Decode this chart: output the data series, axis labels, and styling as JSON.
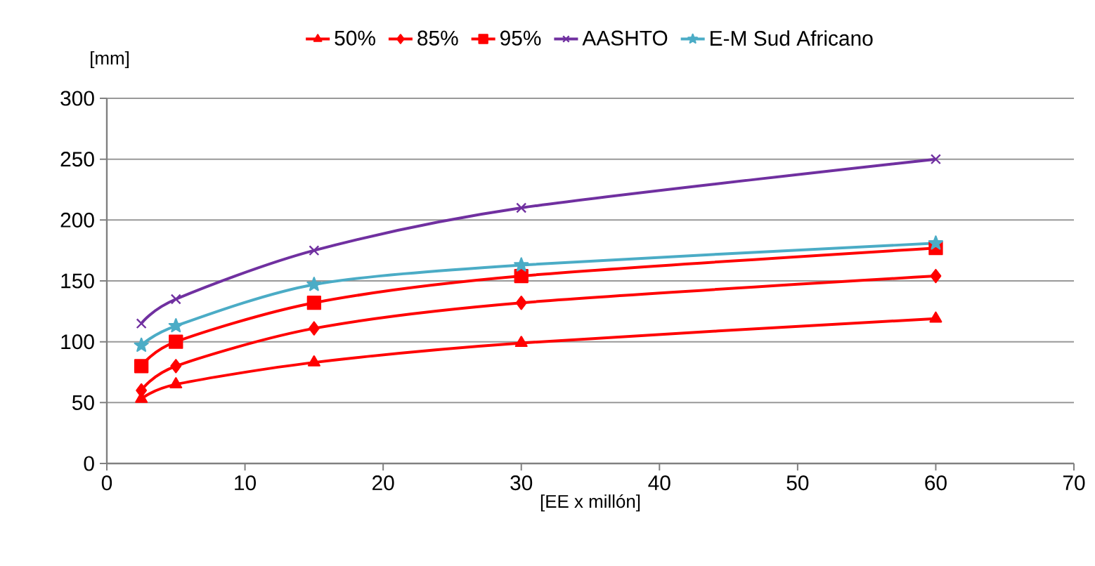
{
  "chart_data": {
    "type": "line",
    "xlabel": "[EE x millón]",
    "ylabel": "[mm]",
    "x": [
      2.5,
      5,
      15,
      30,
      60
    ],
    "series": [
      {
        "name": "50%",
        "color": "#ff0000",
        "marker": "triangle",
        "values": [
          53,
          65,
          83,
          99,
          119
        ]
      },
      {
        "name": "85%",
        "color": "#ff0000",
        "marker": "diamond",
        "values": [
          60,
          80,
          111,
          132,
          154
        ]
      },
      {
        "name": "95%",
        "color": "#ff0000",
        "marker": "square",
        "values": [
          80,
          100,
          132,
          154,
          177
        ]
      },
      {
        "name": "AASHTO",
        "color": "#7030a0",
        "marker": "cross",
        "values": [
          115,
          135,
          175,
          210,
          250
        ]
      },
      {
        "name": "E-M Sud Africano",
        "color": "#4bacc6",
        "marker": "star",
        "values": [
          97,
          113,
          147,
          163,
          181
        ]
      }
    ],
    "xlim": [
      0,
      70
    ],
    "xticks": [
      0,
      10,
      20,
      30,
      40,
      50,
      60,
      70
    ],
    "ylim": [
      0,
      300
    ],
    "yticks": [
      0,
      50,
      100,
      150,
      200,
      250,
      300
    ],
    "grid": "y",
    "legend": "top",
    "line_style": "solid"
  }
}
